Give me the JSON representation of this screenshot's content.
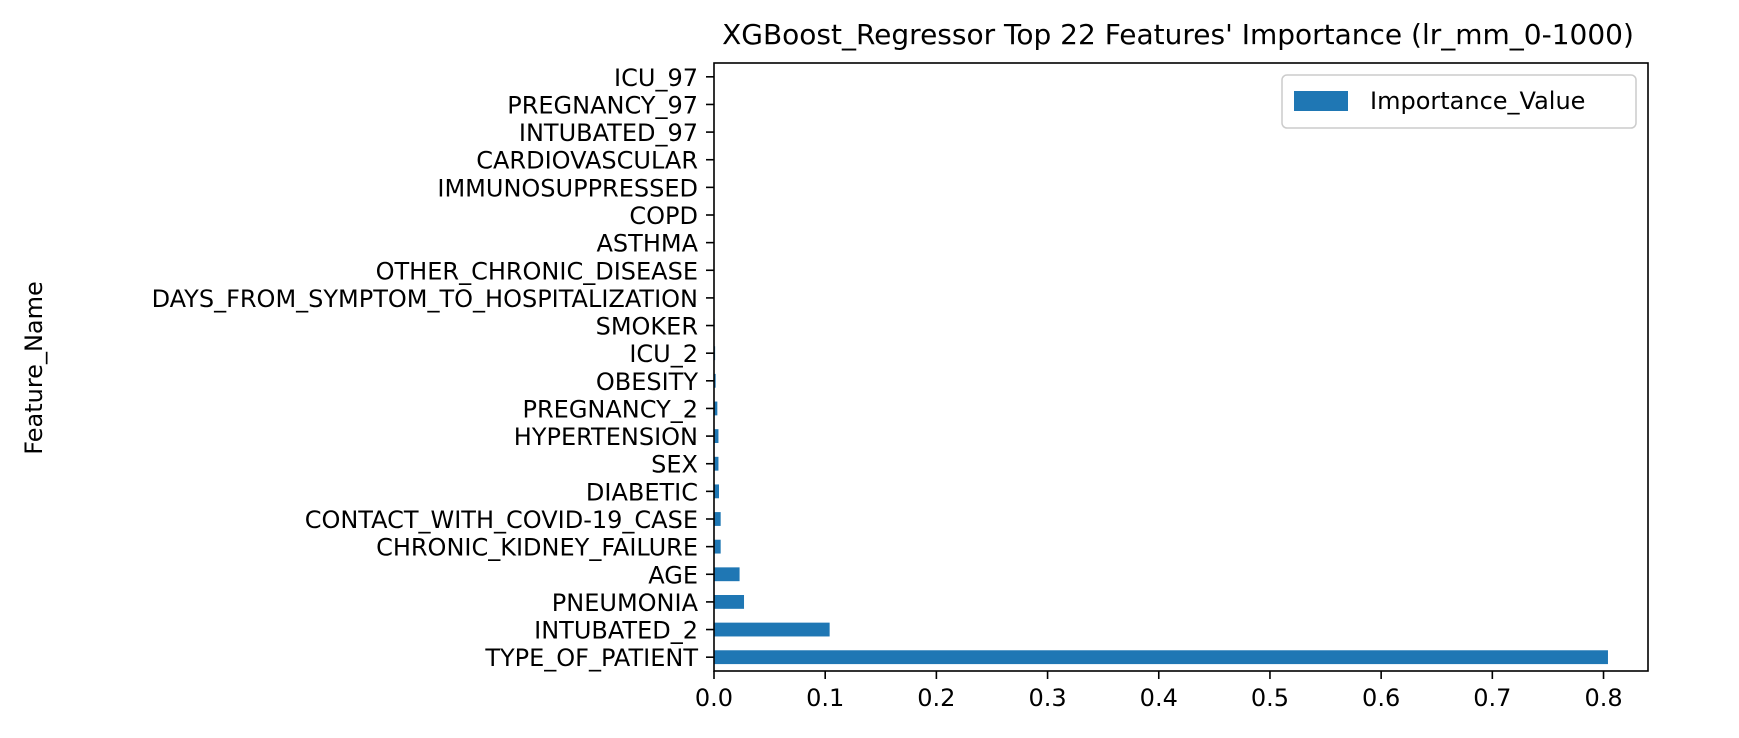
{
  "chart_data": {
    "type": "bar",
    "orientation": "horizontal",
    "title": "XGBoost_Regressor Top 22 Features' Importance (lr_mm_0-1000)",
    "xlabel": "",
    "ylabel": "Feature_Name",
    "xlim": [
      0,
      0.84
    ],
    "xticks": [
      0.0,
      0.1,
      0.2,
      0.3,
      0.4,
      0.5,
      0.6,
      0.7,
      0.8
    ],
    "xtick_labels": [
      "0.0",
      "0.1",
      "0.2",
      "0.3",
      "0.4",
      "0.5",
      "0.6",
      "0.7",
      "0.8"
    ],
    "grid": false,
    "legend": {
      "placement": "top-right",
      "entries": [
        "Importance_Value"
      ]
    },
    "series": [
      {
        "name": "Importance_Value",
        "color": "#1f77b4",
        "categories": [
          "TYPE_OF_PATIENT",
          "INTUBATED_2",
          "PNEUMONIA",
          "AGE",
          "CHRONIC_KIDNEY_FAILURE",
          "CONTACT_WITH_COVID-19_CASE",
          "DIABETIC",
          "SEX",
          "HYPERTENSION",
          "PREGNANCY_2",
          "OBESITY",
          "ICU_2",
          "SMOKER",
          "DAYS_FROM_SYMPTOM_TO_HOSPITALIZATION",
          "OTHER_CHRONIC_DISEASE",
          "ASTHMA",
          "COPD",
          "IMMUNOSUPPRESSED",
          "CARDIOVASCULAR",
          "INTUBATED_97",
          "PREGNANCY_97",
          "ICU_97"
        ],
        "values": [
          0.804,
          0.104,
          0.027,
          0.023,
          0.006,
          0.006,
          0.0045,
          0.004,
          0.004,
          0.003,
          0.0015,
          0.001,
          0.0005,
          0.0003,
          0.0002,
          0.0001,
          0.0001,
          0.0,
          0.0,
          0.0,
          0.0,
          0.0
        ]
      }
    ]
  }
}
